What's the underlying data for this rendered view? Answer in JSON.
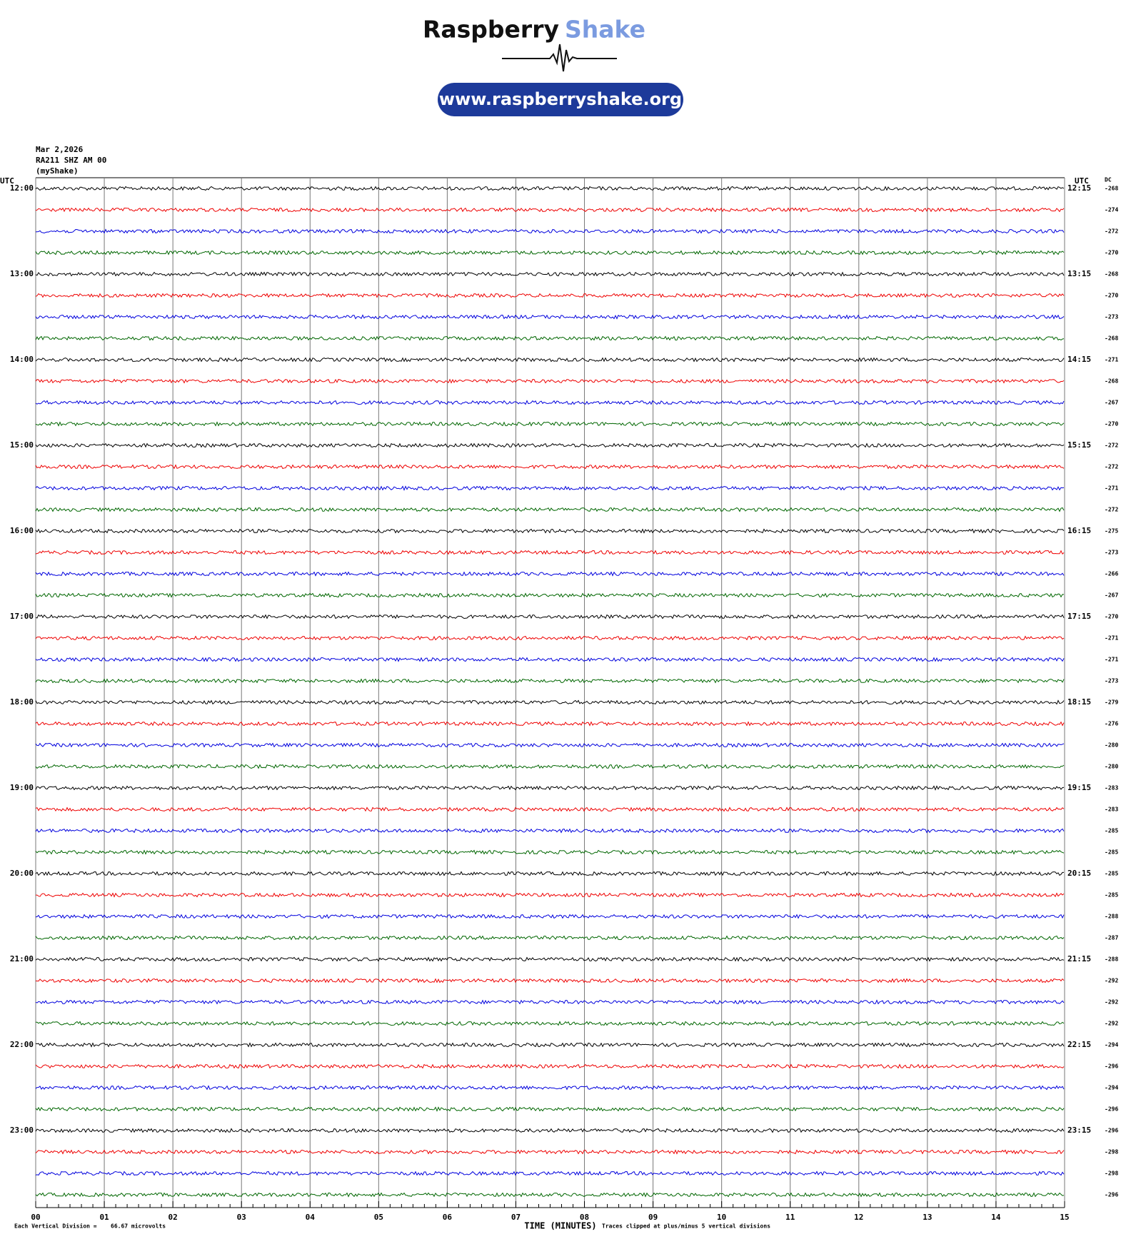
{
  "header": {
    "brand": "Raspberry",
    "brand_accent": "Shake",
    "url": "www.raspberryshake.org"
  },
  "info": [
    "Mar 2,2026",
    "RA211 SHZ AM 00",
    "(myShake)"
  ],
  "axis": {
    "left_unit": "UTC",
    "right_unit": "UTC",
    "dc_label": "DC",
    "x_title": "TIME (MINUTES)"
  },
  "left_labels": [
    "12:00",
    "13:00",
    "14:00",
    "15:00",
    "16:00",
    "17:00",
    "18:00",
    "19:00",
    "20:00",
    "21:00",
    "22:00",
    "23:00"
  ],
  "right_labels": [
    "12:15",
    "13:15",
    "14:15",
    "15:15",
    "16:15",
    "17:15",
    "18:15",
    "19:15",
    "20:15",
    "21:15",
    "22:15",
    "23:15"
  ],
  "dc_values": [
    "-268",
    "-274",
    "-272",
    "-270",
    "-268",
    "-270",
    "-273",
    "-268",
    "-271",
    "-268",
    "-267",
    "-270",
    "-272",
    "-272",
    "-271",
    "-272",
    "-275",
    "-273",
    "-266",
    "-267",
    "-270",
    "-271",
    "-271",
    "-273",
    "-279",
    "-276",
    "-280",
    "-280",
    "-283",
    "-283",
    "-285",
    "-285",
    "-285",
    "-285",
    "-288",
    "-287",
    "-288",
    "-292",
    "-292",
    "-292",
    "-294",
    "-296",
    "-294",
    "-296",
    "-296",
    "-298",
    "-298",
    "-296"
  ],
  "x_ticks": [
    "00",
    "01",
    "02",
    "03",
    "04",
    "05",
    "06",
    "07",
    "08",
    "09",
    "10",
    "11",
    "12",
    "13",
    "14",
    "15"
  ],
  "footer": {
    "division_label": "Each Vertical Division =",
    "division_value": "66.67 microvolts",
    "clip_note": "Traces clipped at plus/minus 5 vertical divisions"
  }
}
